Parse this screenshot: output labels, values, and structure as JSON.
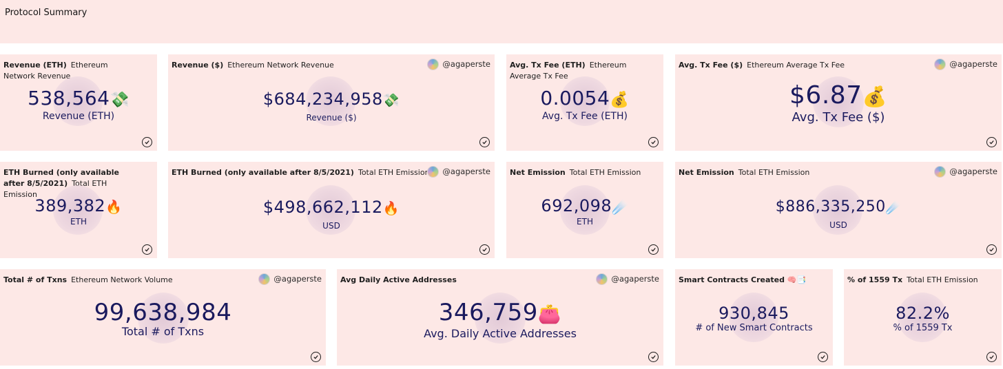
{
  "header": {
    "title": "Protocol Summary"
  },
  "cards": {
    "revenue_eth": {
      "title": "Revenue (ETH)",
      "subtitle": "Ethereum Network Revenue",
      "value": "538,564",
      "emoji": "💸",
      "label": "Revenue (ETH)"
    },
    "revenue_usd": {
      "title": "Revenue ($)",
      "subtitle": "Ethereum Network Revenue",
      "author": "@agaperste",
      "value": "$684,234,958",
      "emoji": "💸",
      "label": "Revenue ($)"
    },
    "txfee_eth": {
      "title": "Avg. Tx Fee (ETH)",
      "subtitle": "Ethereum Average Tx Fee",
      "value": "0.0054",
      "emoji": "💰",
      "label": "Avg. Tx Fee (ETH)"
    },
    "txfee_usd": {
      "title": "Avg. Tx Fee ($)",
      "subtitle": "Ethereum Average Tx Fee",
      "author": "@agaperste",
      "value": "$6.87",
      "emoji": "💰",
      "label": "Avg. Tx Fee ($)"
    },
    "burned_eth": {
      "title": "ETH Burned (only available after 8/5/2021)",
      "subtitle": "Total ETH Emission",
      "value": "389,382",
      "emoji": "🔥",
      "label": "ETH"
    },
    "burned_usd": {
      "title": "ETH Burned (only available after 8/5/2021)",
      "subtitle": "Total ETH Emission",
      "author": "@agaperste",
      "value": "$498,662,112",
      "emoji": "🔥",
      "label": "USD"
    },
    "net_emission_eth": {
      "title": "Net Emission",
      "subtitle": "Total ETH Emission",
      "value": "692,098",
      "emoji": "☄️",
      "label": "ETH"
    },
    "net_emission_usd": {
      "title": "Net Emission",
      "subtitle": "Total ETH Emission",
      "author": "@agaperste",
      "value": "$886,335,250",
      "emoji": "☄️",
      "label": "USD"
    },
    "total_txns": {
      "title": "Total # of Txns",
      "subtitle": "Ethereum Network Volume",
      "author": "@agaperste",
      "value": "99,638,984",
      "label": "Total # of Txns"
    },
    "active_addresses": {
      "title": "Avg Daily Active Addresses",
      "author": "@agaperste",
      "value": "346,759",
      "emoji": "👛",
      "label": "Avg. Daily Active Addresses"
    },
    "smart_contracts": {
      "title": "Smart Contracts Created 🧠📑",
      "value": "930,845",
      "label": "# of New Smart Contracts"
    },
    "pct_1559": {
      "title": "% of 1559 Tx",
      "subtitle": "Total ETH Emission",
      "value": "82.2%",
      "label": "% of 1559 Tx"
    }
  },
  "icons": {
    "author_avatar": "avatar-icon",
    "status": "check-circle-icon"
  },
  "colors": {
    "card_background": "#fde8e6",
    "value_text": "#1a1a5e",
    "page_background": "#ffffff"
  }
}
